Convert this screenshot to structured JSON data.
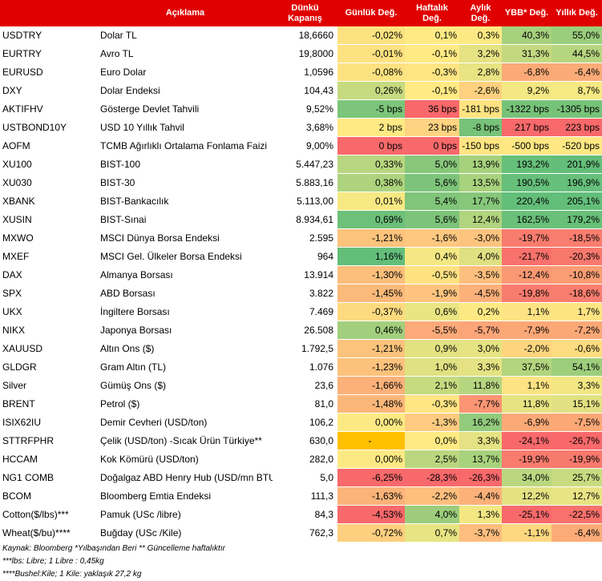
{
  "header": {
    "col_code": "",
    "col_desc": "Açıklama",
    "col_close": "Dünkü Kapanış",
    "col_daily": "Günlük Değ.",
    "col_weekly": "Haftalık Değ.",
    "col_monthly": "Aylık Değ.",
    "col_ytd": "YBB* Değ.",
    "col_yearly": "Yıllık Değ."
  },
  "rows": [
    {
      "code": "USDTRY",
      "desc": "Dolar TL",
      "close": "18,6660",
      "d": "-0,02%",
      "w": "0,1%",
      "m": "0,3%",
      "y": "40,3%",
      "yy": "55,0%",
      "dc": "#fde281",
      "wc": "#ffea84",
      "mc": "#fce983",
      "yc": "#a7d17d",
      "yyc": "#9bce7c"
    },
    {
      "code": "EURTRY",
      "desc": "Avro TL",
      "close": "19,8000",
      "d": "-0,01%",
      "w": "-0,1%",
      "m": "3,2%",
      "y": "31,3%",
      "yy": "44,5%",
      "dc": "#fde281",
      "wc": "#ffea84",
      "mc": "#e5e283",
      "y_c": "",
      "yc": "#c3d980",
      "yyc": "#b6d57f"
    },
    {
      "code": "EURUSD",
      "desc": "Euro Dolar",
      "close": "1,0596",
      "d": "-0,08%",
      "w": "-0,3%",
      "m": "2,8%",
      "y": "-6,8%",
      "yy": "-6,4%",
      "dc": "#fde281",
      "wc": "#ffe583",
      "mc": "#e8e383",
      "yc": "#fbaa77",
      "yyc": "#fbab77"
    },
    {
      "code": "DXY",
      "desc": "Dolar Endeksi",
      "close": "104,43",
      "d": "0,26%",
      "w": "-0,1%",
      "m": "-2,6%",
      "y": "9,2%",
      "yy": "8,7%",
      "dc": "#c6da80",
      "wc": "#ffea84",
      "mc": "#fdd17f",
      "yc": "#f4e884",
      "yyc": "#f6e883"
    },
    {
      "code": "AKTIFHV",
      "desc": "Gösterge Devlet Tahvili",
      "close": "9,52%",
      "d": "-5 bps",
      "w": "36 bps",
      "m": "-181 bps",
      "y": "-1322 bps",
      "yy": "-1305 bps",
      "dc": "#7cc57a",
      "wc": "#f8696b",
      "mc": "#fee382",
      "yc": "#77c279",
      "yyc": "#77c279"
    },
    {
      "code": "USTBOND10Y",
      "desc": "USD 10 Yıllık Tahvil",
      "close": "3,68%",
      "d": "2 bps",
      "w": "23 bps",
      "m": "-8 bps",
      "y": "217 bps",
      "yy": "223 bps",
      "dc": "#ffea84",
      "wc": "#fed381",
      "mc": "#77c279",
      "yc": "#f8696b",
      "yyc": "#f8696b"
    },
    {
      "code": "AOFM",
      "desc": "TCMB Ağırlıklı Ortalama Fonlama Faizi",
      "close": "9,00%",
      "d": "0 bps",
      "w": "0 bps",
      "m": "-150 bps",
      "y": "-500 bps",
      "yy": "-520 bps",
      "dc": "#f8696b",
      "wc": "#f8696b",
      "mc": "#ffe583",
      "yc": "#fde883",
      "yyc": "#fde883"
    },
    {
      "code": "XU100",
      "desc": "BIST-100",
      "close": "5.447,23",
      "d": "0,33%",
      "w": "5,0%",
      "m": "13,9%",
      "y": "193,2%",
      "yy": "201,9%",
      "dc": "#b8d67f",
      "wc": "#88c77b",
      "mc": "#a7d17d",
      "yc": "#66bf7a",
      "yyc": "#64be7a"
    },
    {
      "code": "XU030",
      "desc": "BIST-30",
      "close": "5.883,16",
      "d": "0,38%",
      "w": "5,6%",
      "m": "13,5%",
      "y": "190,5%",
      "yy": "196,9%",
      "dc": "#add37e",
      "wc": "#7dc47a",
      "mc": "#a8d27d",
      "yc": "#66bf7a",
      "yyc": "#66bf7a"
    },
    {
      "code": "XBANK",
      "desc": "BIST-Bankacılık",
      "close": "5.113,00",
      "d": "0,01%",
      "w": "5,4%",
      "m": "17,7%",
      "y": "220,4%",
      "yy": "205,1%",
      "dc": "#f6e883",
      "wc": "#80c57a",
      "mc": "#86c77b",
      "yc": "#63be7a",
      "yyc": "#63be7a"
    },
    {
      "code": "XUSIN",
      "desc": "BIST-Sınai",
      "close": "8.934,61",
      "d": "0,69%",
      "w": "5,6%",
      "m": "12,4%",
      "y": "162,5%",
      "yy": "179,2%",
      "dc": "#6cc079",
      "wc": "#7dc47a",
      "mc": "#b1d47e",
      "yc": "#6ac079",
      "yyc": "#68c079"
    },
    {
      "code": "MXWO",
      "desc": "MSCI Dünya Borsa Endeksi",
      "close": "2.595",
      "d": "-1,21%",
      "w": "-1,6%",
      "m": "-3,0%",
      "y": "-19,7%",
      "yy": "-18,5%",
      "dc": "#fcc37c",
      "wc": "#fec880",
      "mc": "#fdc47f",
      "yc": "#f87c6e",
      "yyc": "#f97e6f"
    },
    {
      "code": "MXEF",
      "desc": "MSCI Gel. Ülkeler Borsa Endeksi",
      "close": "964",
      "d": "1,16%",
      "w": "0,4%",
      "m": "4,0%",
      "y": "-21,7%",
      "yy": "-20,3%",
      "dc": "#63be7a",
      "wc": "#f4e884",
      "mc": "#dfe082",
      "yc": "#f8716c",
      "yyc": "#f8786d"
    },
    {
      "code": "DAX",
      "desc": "Almanya Borsası",
      "close": "13.914",
      "d": "-1,30%",
      "w": "-0,5%",
      "m": "-3,5%",
      "y": "-12,4%",
      "yy": "-10,8%",
      "dc": "#fcbf7b",
      "wc": "#fee282",
      "mc": "#fdbf7d",
      "yc": "#fa9873",
      "yyc": "#fa9d74"
    },
    {
      "code": "SPX",
      "desc": "ABD Borsası",
      "close": "3.822",
      "d": "-1,45%",
      "w": "-1,9%",
      "m": "-4,5%",
      "y": "-19,8%",
      "yy": "-18,6%",
      "dc": "#fbb97a",
      "wc": "#fec47f",
      "mc": "#fcb07a",
      "yc": "#f87c6e",
      "yyc": "#f97e6f"
    },
    {
      "code": "UKX",
      "desc": "İngiltere Borsası",
      "close": "7.469",
      "d": "-0,37%",
      "w": "0,6%",
      "m": "0,2%",
      "y": "1,1%",
      "yy": "1,7%",
      "dc": "#fdda80",
      "wc": "#eae583",
      "mc": "#fde983",
      "yc": "#fde383",
      "yyc": "#fde483"
    },
    {
      "code": "NIKX",
      "desc": "Japonya Borsası",
      "close": "26.508",
      "d": "0,46%",
      "w": "-5,5%",
      "m": "-5,7%",
      "y": "-7,9%",
      "yy": "-7,2%",
      "dc": "#a2cf7d",
      "wc": "#fcaa79",
      "mc": "#fca578",
      "yc": "#fba776",
      "yyc": "#fba877"
    },
    {
      "code": "XAUUSD",
      "desc": "Altın Ons ($)",
      "close": "1.792,5",
      "d": "-1,21%",
      "w": "0,9%",
      "m": "3,0%",
      "y": "-2,0%",
      "yy": "-0,6%",
      "dc": "#fcc37c",
      "wc": "#e3e283",
      "mc": "#e6e383",
      "yc": "#fdd57f",
      "yyc": "#fddc81"
    },
    {
      "code": "GLDGR",
      "desc": "Gram Altın (TL)",
      "close": "1.076",
      "d": "-1,23%",
      "w": "1,0%",
      "m": "3,3%",
      "y": "37,5%",
      "yy": "54,1%",
      "dc": "#fcc27c",
      "wc": "#dfe182",
      "mc": "#e4e283",
      "yc": "#b3d57e",
      "yyc": "#9dce7c"
    },
    {
      "code": "Silver",
      "desc": "Gümüş Ons ($)",
      "close": "23,6",
      "d": "-1,66%",
      "w": "2,1%",
      "m": "11,8%",
      "y": "1,1%",
      "yy": "3,3%",
      "dc": "#fbb179",
      "wc": "#c6da80",
      "mc": "#b6d57f",
      "yc": "#fde383",
      "yyc": "#f2e783"
    },
    {
      "code": "BRENT",
      "desc": "Petrol ($)",
      "close": "81,0",
      "d": "-1,48%",
      "w": "-0,3%",
      "m": "-7,7%",
      "y": "11,8%",
      "yy": "15,1%",
      "dc": "#fbb77a",
      "wc": "#ffe583",
      "mc": "#fb9574",
      "yc": "#e7e383",
      "yyc": "#e1e183"
    },
    {
      "code": "ISIX62IU",
      "desc": "Demir Cevheri (USD/ton)",
      "close": "106,2",
      "d": "0,00%",
      "w": "-1,3%",
      "m": "16,2%",
      "y": "-6,9%",
      "yy": "-7,5%",
      "dc": "#fde983",
      "wc": "#fecb80",
      "mc": "#93cb7c",
      "yc": "#fbaa77",
      "yyc": "#fba776"
    },
    {
      "code": "STTRFPHR",
      "desc": "Çelik (USD/ton) -Sıcak Ürün Türkiye**",
      "close": "630,0",
      "d": "-",
      "w": "0,0%",
      "m": "3,3%",
      "y": "-24,1%",
      "yy": "-26,7%",
      "dc": "#ffc000",
      "wc": "#ffea84",
      "mc": "#e4e283",
      "yc": "#f8696b",
      "yyc": "#f8696b"
    },
    {
      "code": "HCCAM",
      "desc": "Kok Kömürü (USD/ton)",
      "close": "282,0",
      "d": "0,00%",
      "w": "2,5%",
      "m": "13,7%",
      "y": "-19,9%",
      "yy": "-19,9%",
      "dc": "#fde983",
      "wc": "#bad77f",
      "mc": "#a8d27d",
      "yc": "#f87b6e",
      "yyc": "#f8796d"
    },
    {
      "code": "NG1 COMB",
      "desc": "Doğalgaz ABD Henry Hub (USD/mn BTU)",
      "close": "5,0",
      "d": "-6,25%",
      "w": "-28,3%",
      "m": "-26,3%",
      "y": "34,0%",
      "yy": "25,7%",
      "dc": "#f8696b",
      "wc": "#f8696b",
      "mc": "#f8696b",
      "yc": "#bad77f",
      "yyc": "#c9db81"
    },
    {
      "code": "BCOM",
      "desc": "Bloomberg Emtia Endeksi",
      "close": "111,3",
      "d": "-1,63%",
      "w": "-2,2%",
      "m": "-4,4%",
      "y": "12,2%",
      "yy": "12,7%",
      "dc": "#fbb379",
      "wc": "#febf7e",
      "mc": "#fcb17a",
      "yc": "#e5e283",
      "yyc": "#e8e383"
    },
    {
      "code": "Cotton($/lbs)***",
      "desc": "Pamuk (USc /libre)",
      "close": "84,3",
      "d": "-4,53%",
      "w": "4,0%",
      "m": "1,3%",
      "y": "-25,1%",
      "yy": "-22,5%",
      "dc": "#f8696b",
      "wc": "#9dcd7c",
      "mc": "#f3e783",
      "yc": "#f8696b",
      "yyc": "#f8716c"
    },
    {
      "code": "Wheat($/bu)****",
      "desc": "Buğday (USc /Kile)",
      "close": "762,3",
      "d": "-0,72%",
      "w": "0,7%",
      "m": "-3,7%",
      "y": "-1,1%",
      "yy": "-6,4%",
      "dc": "#fdcf7f",
      "wc": "#e7e483",
      "mc": "#fdbd7d",
      "yc": "#fdd880",
      "yyc": "#fbab77"
    }
  ],
  "footnotes": [
    "Kaynak: Bloomberg *Yılbaşından Beri  ** Güncelleme haftalıktır",
    "***lbs: Libre; 1 Libre : 0,45kg",
    "****Bushel:Kile; 1 Kile: yaklaşık 27,2 kg"
  ]
}
